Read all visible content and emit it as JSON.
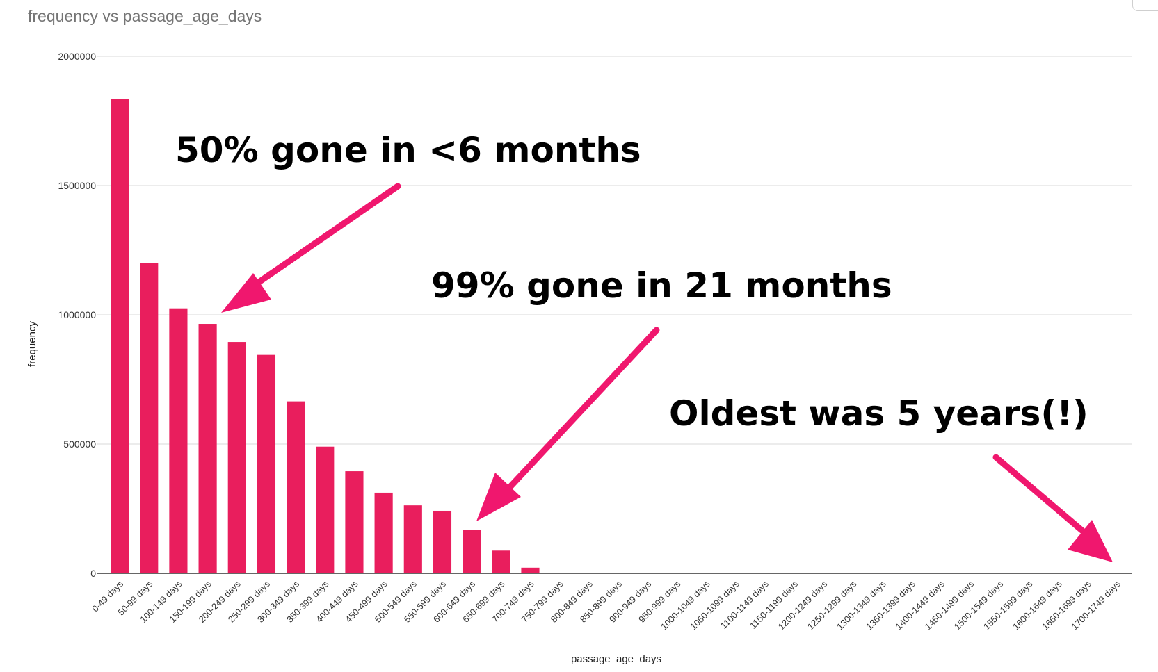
{
  "chart_data": {
    "type": "bar",
    "title": "frequency vs passage_age_days",
    "xlabel": "passage_age_days",
    "ylabel": "frequency",
    "ylim": [
      0,
      2000000
    ],
    "yticks": [
      "0",
      "500000",
      "1000000",
      "1500000",
      "2000000"
    ],
    "grid": true,
    "bar_color": "#e91e5d",
    "categories": [
      "0-49 days",
      "50-99 days",
      "100-149 days",
      "150-199 days",
      "200-249 days",
      "250-299 days",
      "300-349 days",
      "350-399 days",
      "400-449 days",
      "450-499 days",
      "500-549 days",
      "550-599 days",
      "600-649 days",
      "650-699 days",
      "700-749 days",
      "750-799 days",
      "800-849 days",
      "850-899 days",
      "900-949 days",
      "950-999 days",
      "1000-1049 days",
      "1050-1099 days",
      "1100-1149 days",
      "1150-1199 days",
      "1200-1249 days",
      "1250-1299 days",
      "1300-1349 days",
      "1350-1399 days",
      "1400-1449 days",
      "1450-1499 days",
      "1500-1549 days",
      "1550-1599 days",
      "1600-1649 days",
      "1650-1699 days",
      "1700-1749 days"
    ],
    "values": [
      1835000,
      1200000,
      1025000,
      965000,
      895000,
      845000,
      665000,
      490000,
      395000,
      312000,
      263000,
      242000,
      168000,
      88000,
      22000,
      1500,
      700,
      300,
      150,
      80,
      40,
      20,
      10,
      5,
      3,
      2,
      1,
      1,
      1,
      1,
      1,
      1,
      1,
      1,
      1
    ]
  },
  "annotations": {
    "color": "#f0176e",
    "items": [
      {
        "text": "50% gone in <6 months"
      },
      {
        "text": "99% gone in 21 months"
      },
      {
        "text": "Oldest was 5 years(!)"
      }
    ]
  }
}
